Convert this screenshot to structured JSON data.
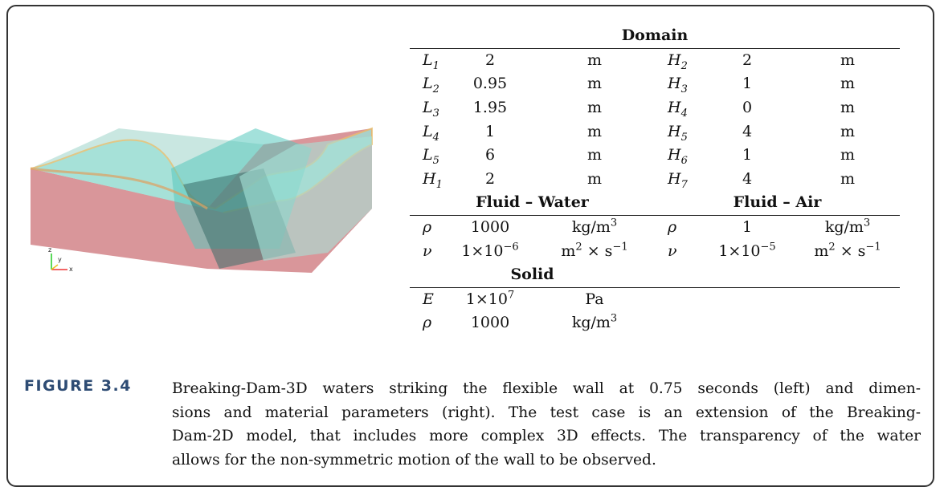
{
  "image": {
    "axis_labels": [
      "z",
      "y",
      "x"
    ]
  },
  "table": {
    "domain": {
      "title": "Domain",
      "rows": [
        [
          [
            {
              "text": "L"
            },
            {
              "sub": "1"
            }
          ],
          [
            {
              "text": "2"
            }
          ],
          [
            {
              "text": "m"
            }
          ],
          [
            {
              "text": "H"
            },
            {
              "sub": "2"
            }
          ],
          [
            {
              "text": "2"
            }
          ],
          [
            {
              "text": "m"
            }
          ]
        ],
        [
          [
            {
              "text": "L"
            },
            {
              "sub": "2"
            }
          ],
          [
            {
              "text": "0.95"
            }
          ],
          [
            {
              "text": "m"
            }
          ],
          [
            {
              "text": "H"
            },
            {
              "sub": "3"
            }
          ],
          [
            {
              "text": "1"
            }
          ],
          [
            {
              "text": "m"
            }
          ]
        ],
        [
          [
            {
              "text": "L"
            },
            {
              "sub": "3"
            }
          ],
          [
            {
              "text": "1.95"
            }
          ],
          [
            {
              "text": "m"
            }
          ],
          [
            {
              "text": "H"
            },
            {
              "sub": "4"
            }
          ],
          [
            {
              "text": "0"
            }
          ],
          [
            {
              "text": "m"
            }
          ]
        ],
        [
          [
            {
              "text": "L"
            },
            {
              "sub": "4"
            }
          ],
          [
            {
              "text": "1"
            }
          ],
          [
            {
              "text": "m"
            }
          ],
          [
            {
              "text": "H"
            },
            {
              "sub": "5"
            }
          ],
          [
            {
              "text": "4"
            }
          ],
          [
            {
              "text": "m"
            }
          ]
        ],
        [
          [
            {
              "text": "L"
            },
            {
              "sub": "5"
            }
          ],
          [
            {
              "text": "6"
            }
          ],
          [
            {
              "text": "m"
            }
          ],
          [
            {
              "text": "H"
            },
            {
              "sub": "6"
            }
          ],
          [
            {
              "text": "1"
            }
          ],
          [
            {
              "text": "m"
            }
          ]
        ],
        [
          [
            {
              "text": "H"
            },
            {
              "sub": "1"
            }
          ],
          [
            {
              "text": "2"
            }
          ],
          [
            {
              "text": "m"
            }
          ],
          [
            {
              "text": "H"
            },
            {
              "sub": "7"
            }
          ],
          [
            {
              "text": "4"
            }
          ],
          [
            {
              "text": "m"
            }
          ]
        ]
      ]
    },
    "fluid": {
      "water_title": "Fluid – Water",
      "air_title": "Fluid – Air",
      "rows": [
        [
          [
            {
              "text": "ρ"
            }
          ],
          [
            {
              "text": "1000"
            }
          ],
          [
            {
              "text": "kg/m"
            },
            {
              "sup": "3"
            }
          ],
          [
            {
              "text": "ρ"
            }
          ],
          [
            {
              "text": "1"
            }
          ],
          [
            {
              "text": "kg/m"
            },
            {
              "sup": "3"
            }
          ]
        ],
        [
          [
            {
              "text": "ν"
            }
          ],
          [
            {
              "text": "1×10"
            },
            {
              "sup": "−6"
            }
          ],
          [
            {
              "text": "m"
            },
            {
              "sup": "2"
            },
            {
              "text": " × s"
            },
            {
              "sup": "−1"
            }
          ],
          [
            {
              "text": "ν"
            }
          ],
          [
            {
              "text": "1×10"
            },
            {
              "sup": "−5"
            }
          ],
          [
            {
              "text": "m"
            },
            {
              "sup": "2"
            },
            {
              "text": " × s"
            },
            {
              "sup": "−1"
            }
          ]
        ]
      ]
    },
    "solid": {
      "title": "Solid",
      "rows": [
        [
          [
            {
              "text": "E"
            }
          ],
          [
            {
              "text": "1×10"
            },
            {
              "sup": "7"
            }
          ],
          [
            {
              "text": "Pa"
            }
          ]
        ],
        [
          [
            {
              "text": "ρ"
            }
          ],
          [
            {
              "text": "1000"
            }
          ],
          [
            {
              "text": "kg/m"
            },
            {
              "sup": "3"
            }
          ]
        ]
      ]
    }
  },
  "caption": {
    "label": "FIGURE 3.4",
    "lines": [
      "Breaking-Dam-3D waters striking the flexible wall at 0.75 seconds (left) and dimen-",
      "sions and material parameters (right). The test case is an extension of the Breaking-",
      "Dam-2D model, that includes more complex 3D effects. The transparency of the water",
      "allows for the non-symmetric motion of the wall to be observed."
    ]
  }
}
